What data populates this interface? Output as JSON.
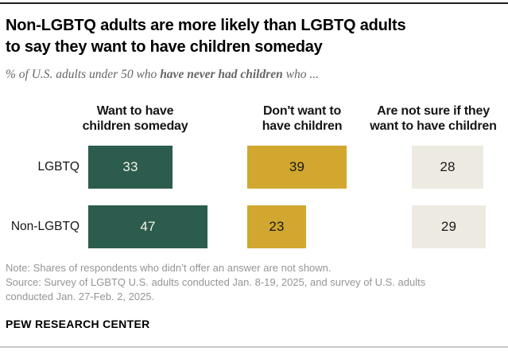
{
  "header": {
    "title_line1": "Non-LGBTQ adults are more likely than LGBTQ adults",
    "title_line2": "to say they want to have children someday",
    "subtitle_prefix": "% of U.S. adults under 50 who ",
    "subtitle_bold": "have never had children",
    "subtitle_suffix": " who ..."
  },
  "column_headers": [
    {
      "line1": "Want to have",
      "line2": "children someday"
    },
    {
      "line1": "Don't want to",
      "line2": "have children"
    },
    {
      "line1": "Are not sure if they",
      "line2": "want to have children"
    }
  ],
  "chart_data": {
    "type": "bar",
    "orientation": "horizontal",
    "unit": "%",
    "categories": [
      "LGBTQ",
      "Non-LGBTQ"
    ],
    "series": [
      {
        "name": "Want to have children someday",
        "values": [
          33,
          47
        ],
        "color": "#2B5C4D",
        "value_text_color": "#F7F3E8"
      },
      {
        "name": "Don't want to have children",
        "values": [
          39,
          23
        ],
        "color": "#D2A72F",
        "value_text_color": "#1A1A1A"
      },
      {
        "name": "Are not sure if they want to have children",
        "values": [
          28,
          29
        ],
        "color": "#EDEAE2",
        "value_text_color": "#1A1A1A"
      }
    ],
    "xlim": [
      0,
      50
    ],
    "value_labels_shown": true,
    "grid": false,
    "legend_position": "column-headers"
  },
  "footer": {
    "note": "Note: Shares of respondents who didn’t offer an answer are not shown.",
    "source_line1": "Source: Survey of LGBTQ U.S. adults conducted Jan. 8-19, 2025, and survey of U.S. adults",
    "source_line2": "conducted Jan. 27-Feb. 2, 2025.",
    "brand": "PEW RESEARCH CENTER"
  }
}
